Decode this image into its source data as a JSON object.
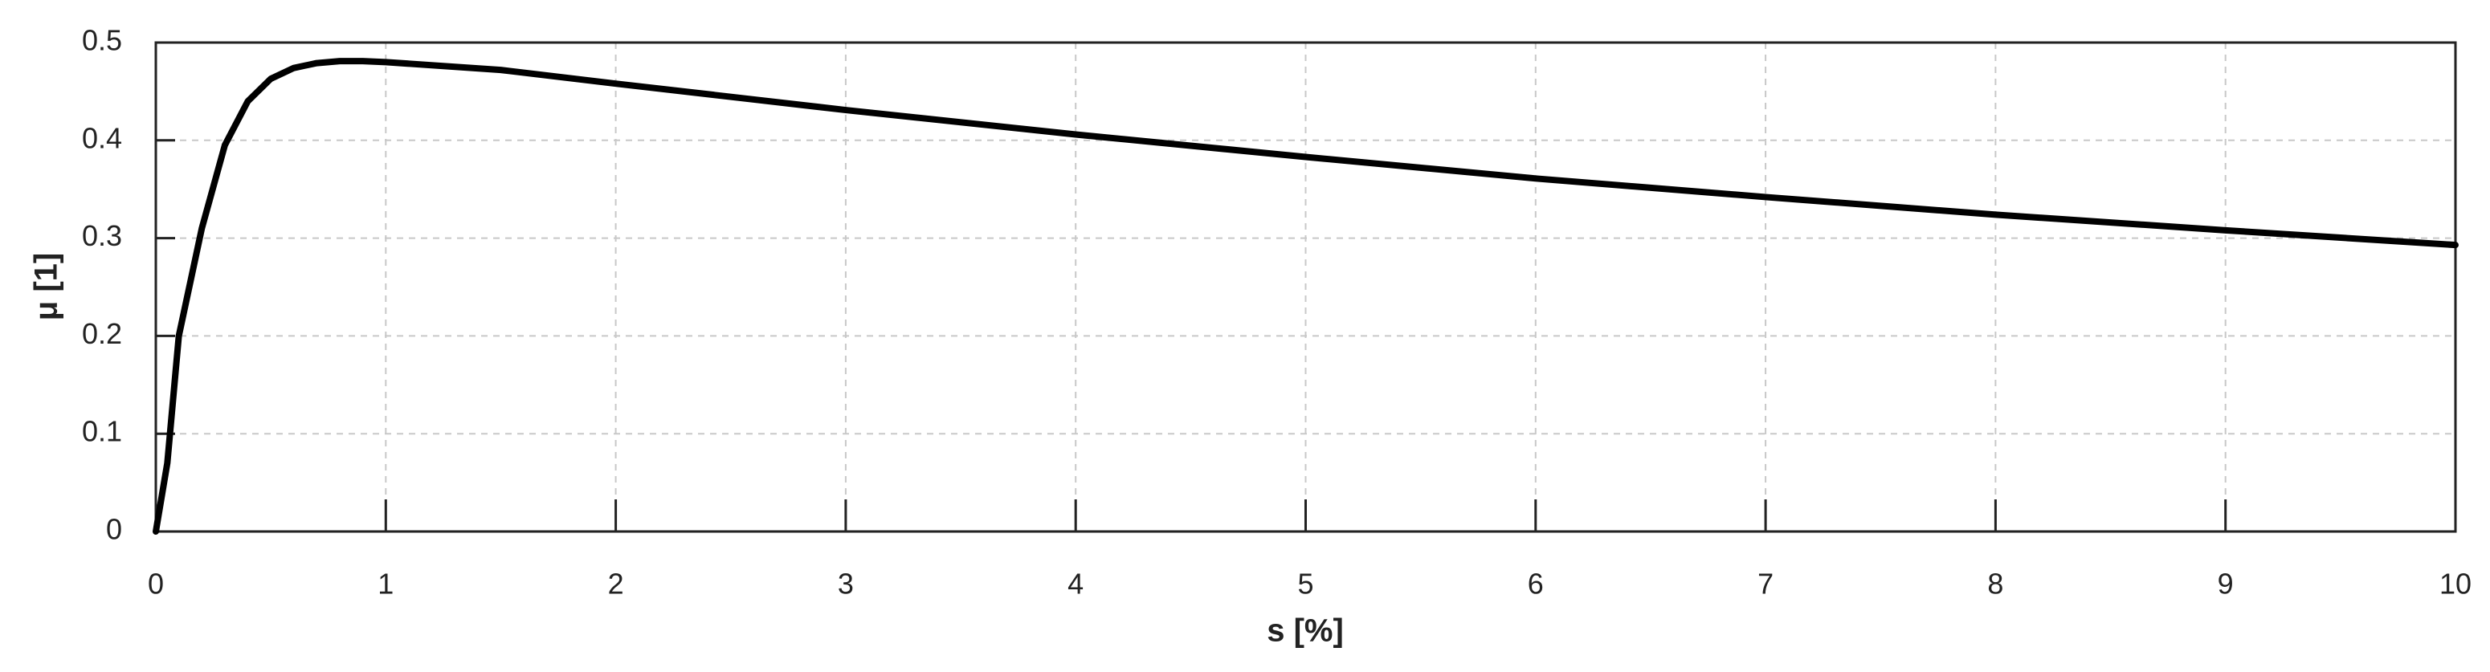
{
  "chart_data": {
    "type": "line",
    "x_label": "s [%]",
    "y_label": "μ [1]",
    "x": [
      0,
      0.05,
      0.1,
      0.2,
      0.3,
      0.4,
      0.5,
      0.6,
      0.7,
      0.8,
      0.9,
      1.0,
      1.5,
      2,
      3,
      4,
      5,
      6,
      7,
      8,
      9,
      10
    ],
    "values": [
      0,
      0.07,
      0.2,
      0.31,
      0.395,
      0.44,
      0.463,
      0.474,
      0.479,
      0.481,
      0.481,
      0.48,
      0.472,
      0.458,
      0.431,
      0.406,
      0.383,
      0.361,
      0.342,
      0.324,
      0.308,
      0.293
    ],
    "color": "#000000",
    "xlim": [
      0,
      10
    ],
    "ylim": [
      0,
      0.5
    ],
    "xticks": [
      0,
      1,
      2,
      3,
      4,
      5,
      6,
      7,
      8,
      9,
      10
    ],
    "yticks": [
      0,
      0.1,
      0.2,
      0.3,
      0.4,
      0.5
    ],
    "grid": true
  }
}
